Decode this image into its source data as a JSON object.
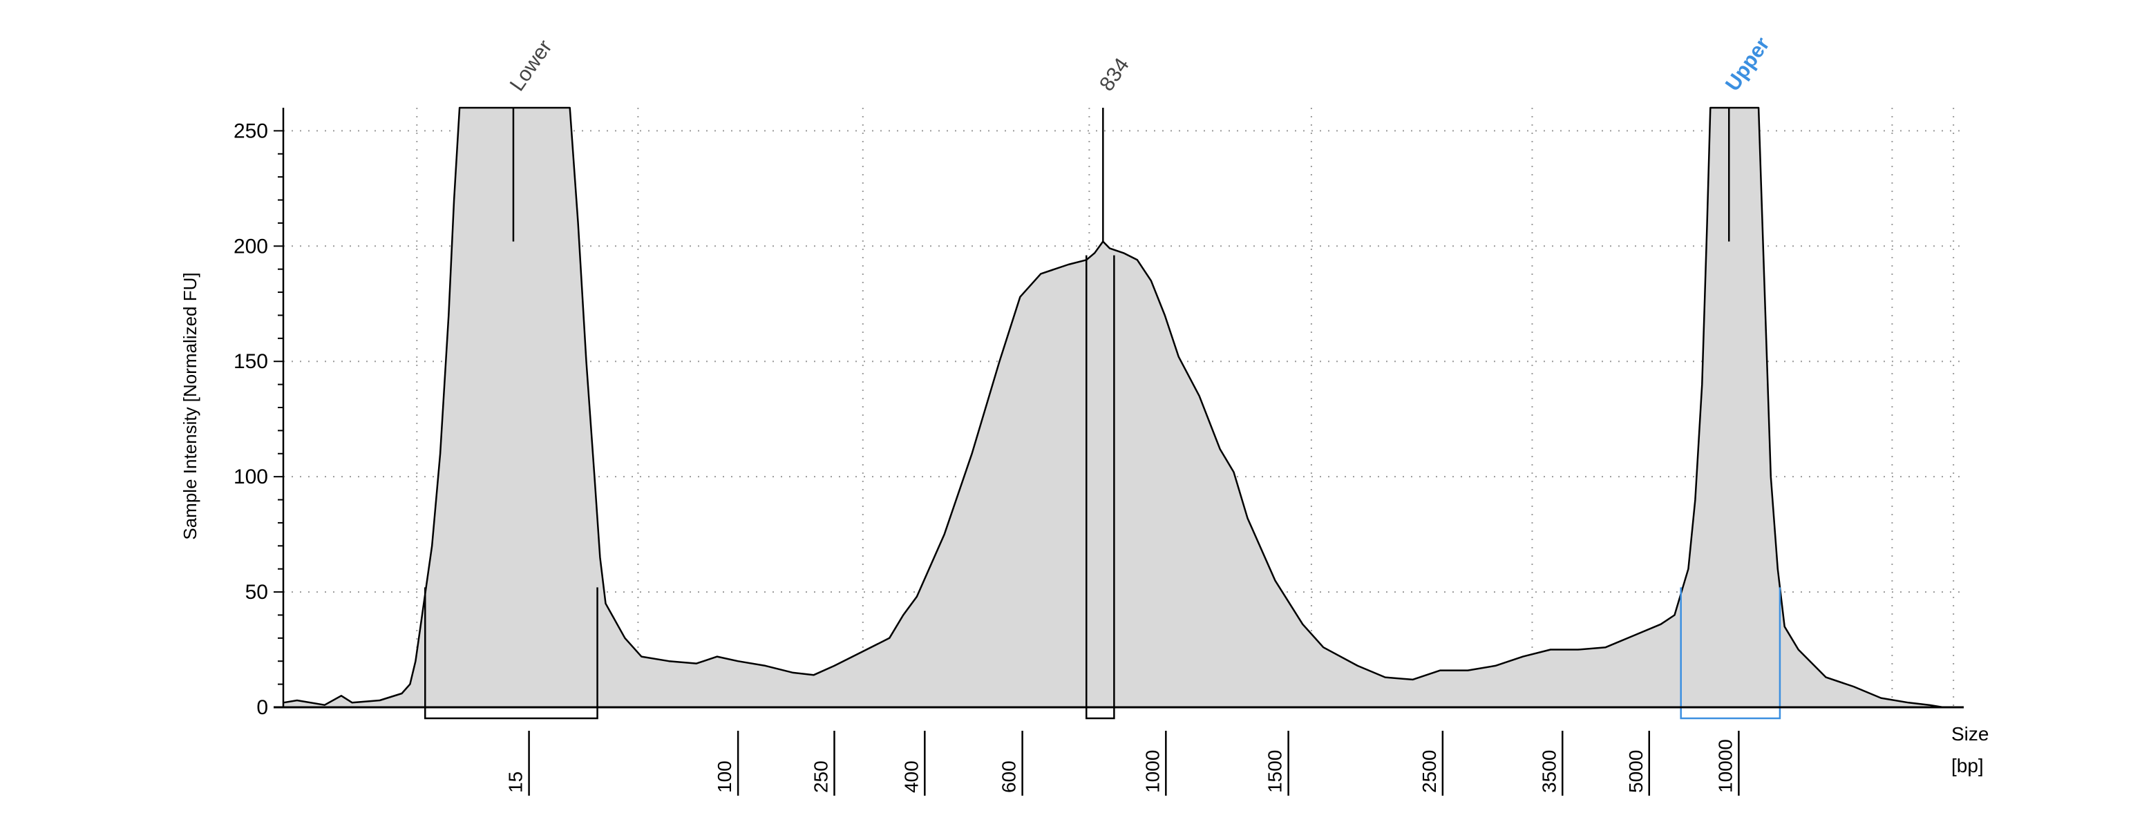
{
  "chart_data": {
    "type": "area",
    "ylabel": "Sample Intensity [Normalized FU]",
    "xlabel_line1": "Size",
    "xlabel_line2": "[bp]",
    "ylim": [
      0,
      260
    ],
    "yticks": [
      0,
      50,
      100,
      150,
      200,
      250
    ],
    "xticks": [
      {
        "label": "15",
        "pos": 0.1421
      },
      {
        "label": "100",
        "pos": 0.2665
      },
      {
        "label": "250",
        "pos": 0.3238
      },
      {
        "label": "400",
        "pos": 0.3776
      },
      {
        "label": "600",
        "pos": 0.4357
      },
      {
        "label": "1000",
        "pos": 0.5211
      },
      {
        "label": "1500",
        "pos": 0.594
      },
      {
        "label": "2500",
        "pos": 0.6858
      },
      {
        "label": "3500",
        "pos": 0.7571
      },
      {
        "label": "5000",
        "pos": 0.8087
      },
      {
        "label": "10000",
        "pos": 0.862
      }
    ],
    "vgrid": [
      0.0795,
      0.2111,
      0.3449,
      0.4796,
      0.6118,
      0.7432,
      0.8742,
      0.9574,
      0.9939
    ],
    "peaks": [
      {
        "label": "Lower",
        "pos": 0.1369,
        "color": "#444444",
        "region": [
          0.0844,
          0.1869
        ],
        "line_left": 0.1049,
        "line_right": 0.1705,
        "box_color": "#000000"
      },
      {
        "label": "834",
        "pos": 0.4878,
        "color": "#444444",
        "region": [
          0.4779,
          0.4944
        ],
        "line_left": 0.4779,
        "line_right": 0.4944,
        "box_color": "#000000"
      },
      {
        "label": "Upper",
        "pos": 0.8603,
        "color": "#3b8fe0",
        "region": [
          0.8317,
          0.8906
        ],
        "line_left": 0.8473,
        "line_right": 0.8779,
        "box_color": "#3b8fe0"
      }
    ],
    "series": [
      {
        "fill": "#d9d9d9",
        "stroke": "#000000",
        "points": [
          [
            0,
            2
          ],
          [
            0.0082,
            3
          ],
          [
            0.0246,
            1
          ],
          [
            0.0345,
            5
          ],
          [
            0.041,
            2
          ],
          [
            0.0574,
            3
          ],
          [
            0.0705,
            6
          ],
          [
            0.0754,
            10
          ],
          [
            0.0787,
            20
          ],
          [
            0.0836,
            45
          ],
          [
            0.0885,
            70
          ],
          [
            0.0934,
            110
          ],
          [
            0.0984,
            170
          ],
          [
            0.1016,
            220
          ],
          [
            0.1049,
            260
          ],
          [
            0.1705,
            260
          ],
          [
            0.1754,
            210
          ],
          [
            0.1803,
            150
          ],
          [
            0.1852,
            100
          ],
          [
            0.1885,
            65
          ],
          [
            0.1918,
            45
          ],
          [
            0.2033,
            30
          ],
          [
            0.2131,
            22
          ],
          [
            0.2295,
            20
          ],
          [
            0.2459,
            19
          ],
          [
            0.2582,
            22
          ],
          [
            0.2705,
            20
          ],
          [
            0.2869,
            18
          ],
          [
            0.3033,
            15
          ],
          [
            0.3156,
            14
          ],
          [
            0.3279,
            18
          ],
          [
            0.3443,
            24
          ],
          [
            0.3607,
            30
          ],
          [
            0.3689,
            40
          ],
          [
            0.377,
            48
          ],
          [
            0.3934,
            75
          ],
          [
            0.4098,
            110
          ],
          [
            0.4262,
            150
          ],
          [
            0.4385,
            178
          ],
          [
            0.4508,
            188
          ],
          [
            0.4672,
            192
          ],
          [
            0.4779,
            194
          ],
          [
            0.4828,
            197
          ],
          [
            0.4878,
            202
          ],
          [
            0.4918,
            199
          ],
          [
            0.5,
            197
          ],
          [
            0.5082,
            194
          ],
          [
            0.5164,
            185
          ],
          [
            0.5246,
            170
          ],
          [
            0.5328,
            152
          ],
          [
            0.5451,
            135
          ],
          [
            0.5574,
            112
          ],
          [
            0.5656,
            102
          ],
          [
            0.5738,
            82
          ],
          [
            0.5902,
            55
          ],
          [
            0.6066,
            36
          ],
          [
            0.6189,
            26
          ],
          [
            0.6393,
            18
          ],
          [
            0.6557,
            13
          ],
          [
            0.6721,
            12
          ],
          [
            0.6885,
            16
          ],
          [
            0.7049,
            16
          ],
          [
            0.7213,
            18
          ],
          [
            0.7377,
            22
          ],
          [
            0.7541,
            25
          ],
          [
            0.7705,
            25
          ],
          [
            0.7869,
            26
          ],
          [
            0.8033,
            31
          ],
          [
            0.8197,
            36
          ],
          [
            0.8279,
            40
          ],
          [
            0.8361,
            60
          ],
          [
            0.8402,
            90
          ],
          [
            0.8443,
            140
          ],
          [
            0.8473,
            210
          ],
          [
            0.8492,
            260
          ],
          [
            0.8779,
            260
          ],
          [
            0.8811,
            190
          ],
          [
            0.8852,
            100
          ],
          [
            0.8893,
            60
          ],
          [
            0.8934,
            35
          ],
          [
            0.9016,
            25
          ],
          [
            0.918,
            13
          ],
          [
            0.9344,
            9
          ],
          [
            0.9508,
            4
          ],
          [
            0.9672,
            2
          ],
          [
            0.9795,
            1
          ],
          [
            0.9877,
            0
          ],
          [
            1.0,
            0
          ]
        ]
      }
    ]
  }
}
